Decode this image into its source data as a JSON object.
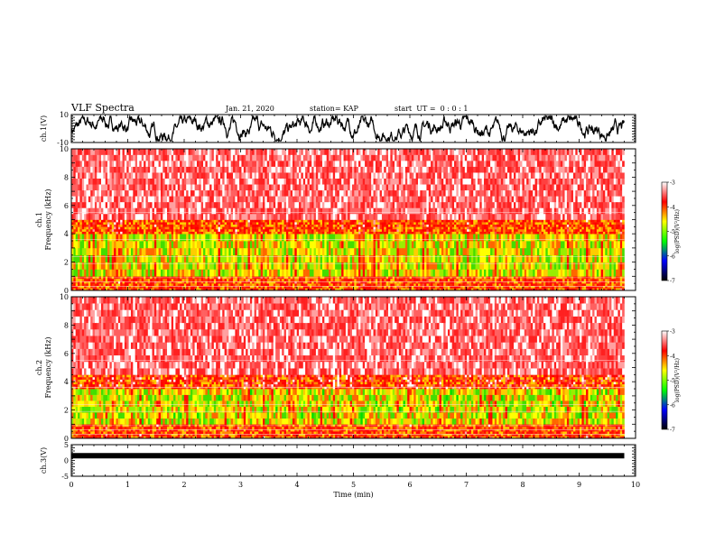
{
  "header": {
    "title": "VLF Spectra",
    "date": "Jan. 21, 2020",
    "station": "station= KAP",
    "start_ut": "start  UT =  0 : 0 : 1"
  },
  "chart_data": [
    {
      "type": "line",
      "panel": "ch1-waveform",
      "ylabel": "ch.1(V)",
      "ylim": [
        -10,
        10
      ],
      "yticks": [
        10,
        -10
      ],
      "xlim": [
        0,
        10
      ],
      "description_values": "noisy voltage trace oscillating roughly between -8 and +9 V over 0–9.8 min"
    },
    {
      "type": "heatmap",
      "panel": "ch1-spectrogram",
      "ylabel": "ch.1\nFrequency (kHz)",
      "ylim": [
        0,
        10
      ],
      "yticks": [
        0,
        2,
        4,
        6,
        8,
        10
      ],
      "xlim": [
        0,
        10
      ],
      "data_end_min": 9.8,
      "colorbar": {
        "label": "log(PSD)(V²/Hz)",
        "range": [
          -7,
          -3
        ],
        "ticks": [
          -3,
          -4,
          -5,
          -6,
          -7
        ]
      },
      "bands": [
        {
          "f_low": 0,
          "f_high": 1,
          "level": -4.3
        },
        {
          "f_low": 1,
          "f_high": 4,
          "level": -4.8
        },
        {
          "f_low": 4,
          "f_high": 5,
          "level": -4.2
        },
        {
          "f_low": 5,
          "f_high": 10,
          "level": -3.5
        }
      ]
    },
    {
      "type": "heatmap",
      "panel": "ch2-spectrogram",
      "ylabel": "ch.2\nFrequency (kHz)",
      "ylim": [
        0,
        10
      ],
      "yticks": [
        0,
        2,
        4,
        6,
        8,
        10
      ],
      "xlim": [
        0,
        10
      ],
      "data_end_min": 9.8,
      "colorbar": {
        "label": "log(PSD)(V²/Hz)",
        "range": [
          -7,
          -3
        ],
        "ticks": [
          -3,
          -4,
          -5,
          -6,
          -7
        ]
      },
      "bands": [
        {
          "f_low": 0,
          "f_high": 1,
          "level": -4.3
        },
        {
          "f_low": 1,
          "f_high": 3.5,
          "level": -4.9
        },
        {
          "f_low": 3.5,
          "f_high": 4.5,
          "level": -4.1
        },
        {
          "f_low": 4.5,
          "f_high": 10,
          "level": -3.4
        }
      ]
    },
    {
      "type": "line",
      "panel": "ch3-waveform",
      "ylabel": "ch.3(V)",
      "ylim": [
        -5,
        5
      ],
      "yticks": [
        5,
        0,
        -5
      ],
      "xlim": [
        0,
        10
      ],
      "xlabel": "Time (min)",
      "xticks": [
        0,
        1,
        2,
        3,
        4,
        5,
        6,
        7,
        8,
        9,
        10
      ],
      "constant_level_v": 1.5
    }
  ],
  "colors": {
    "frame": "#000000",
    "trace": "#000000",
    "colormap": [
      "#000000",
      "#0000ff",
      "#00ff00",
      "#ffff00",
      "#ff0000",
      "#ffffff"
    ]
  }
}
